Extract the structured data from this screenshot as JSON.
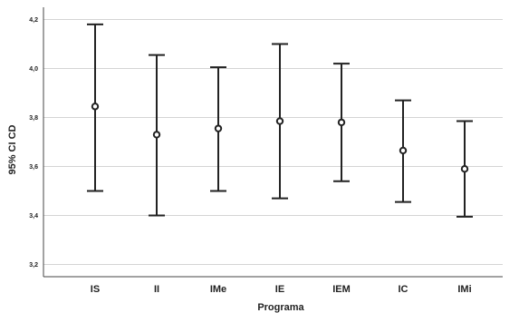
{
  "chart_data": {
    "type": "errorbar",
    "categories": [
      "IS",
      "II",
      "IMe",
      "IE",
      "IEM",
      "IC",
      "IMi"
    ],
    "mean": [
      3.845,
      3.73,
      3.755,
      3.785,
      3.78,
      3.665,
      3.59
    ],
    "lower": [
      3.5,
      3.4,
      3.5,
      3.47,
      3.54,
      3.455,
      3.395
    ],
    "upper": [
      4.18,
      4.055,
      4.005,
      4.1,
      4.02,
      3.87,
      3.785
    ],
    "xlabel": "Programa",
    "ylabel": "95% CI CD",
    "ylim": [
      3.15,
      4.25
    ],
    "yticks": [
      3.2,
      3.4,
      3.6,
      3.8,
      4.0,
      4.2
    ],
    "ytick_labels": [
      "3,2",
      "3,4",
      "3,6",
      "3,8",
      "4,0",
      "4,2"
    ],
    "grid": true
  }
}
